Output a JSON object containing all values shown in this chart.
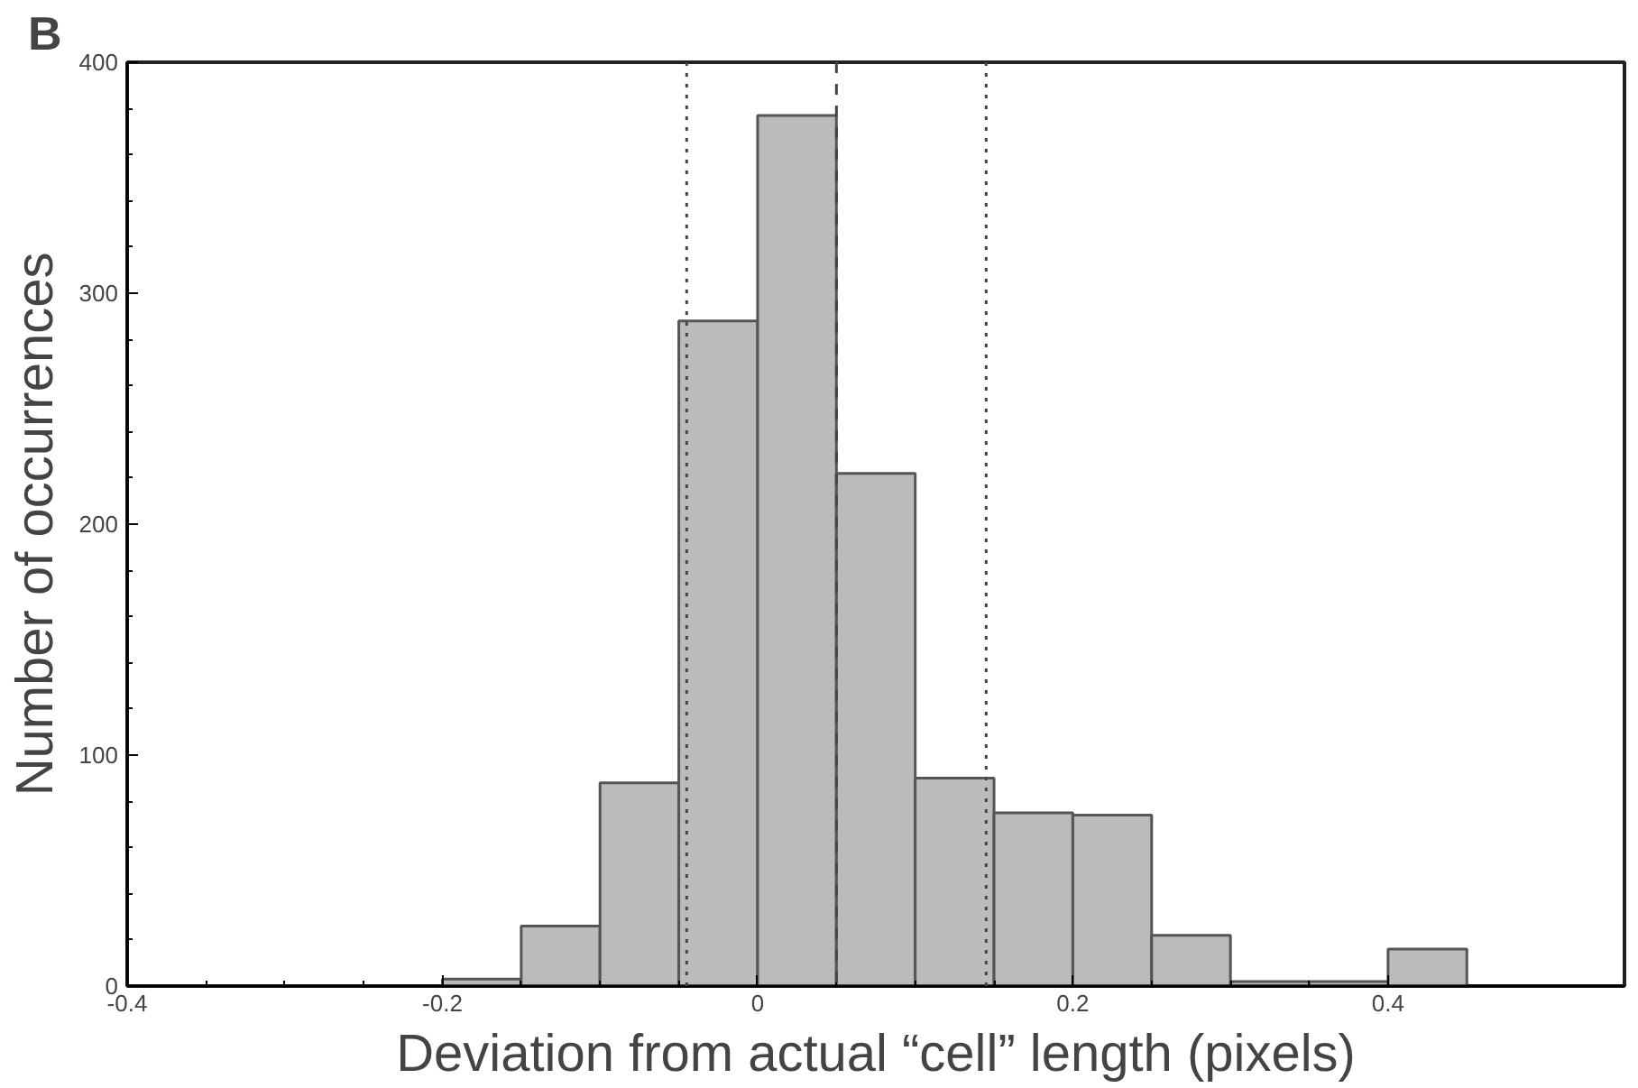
{
  "chart_data": {
    "type": "histogram",
    "xlabel": "Deviation from actual “cell” length (pixels)",
    "ylabel": "Number of occurrences",
    "annotations": [
      "B"
    ],
    "bins": [
      -0.2,
      -0.15,
      -0.1,
      -0.05,
      0,
      0.05,
      0.1,
      0.15,
      0.2,
      0.25,
      0.3,
      0.35,
      0.4,
      0.45
    ],
    "values": [
      3,
      26,
      88,
      288,
      377,
      222,
      90,
      75,
      74,
      22,
      2,
      2,
      16
    ],
    "color": "#bbbbbb",
    "xlim": [
      -0.4,
      0.55
    ],
    "ylim": [
      0,
      400
    ],
    "xticks": [
      -0.4,
      -0.2,
      0,
      0.2,
      0.4
    ],
    "yticks": [
      0,
      100,
      200,
      300,
      400
    ],
    "grid": false,
    "ref_lines": [
      {
        "axis": "x",
        "value": -0.045,
        "line_style": "dotted",
        "color": "#444444"
      },
      {
        "axis": "x",
        "value": 0.05,
        "line_style": "dashed",
        "color": "#444444"
      },
      {
        "axis": "x",
        "value": 0.145,
        "line_style": "dotted",
        "color": "#444444"
      }
    ]
  }
}
